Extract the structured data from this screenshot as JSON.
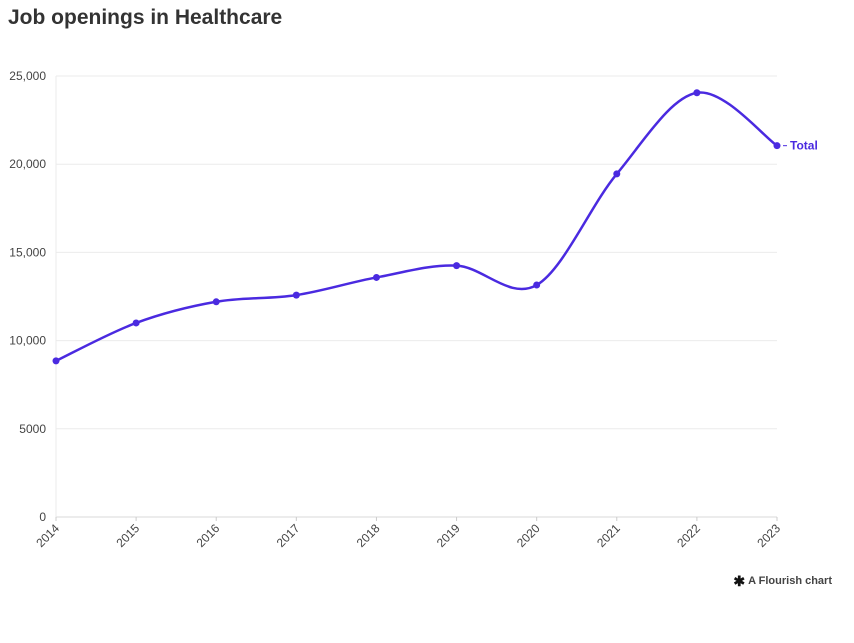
{
  "chart_data": {
    "type": "line",
    "title": "Job openings in Healthcare",
    "x": [
      "2014",
      "2015",
      "2016",
      "2017",
      "2018",
      "2019",
      "2020",
      "2021",
      "2022",
      "2023"
    ],
    "series": [
      {
        "name": "Total",
        "values": [
          8850,
          11000,
          12200,
          12580,
          13580,
          14250,
          13150,
          19450,
          24050,
          21050
        ],
        "color": "#4a2ae0"
      }
    ],
    "ylim": [
      0,
      25000
    ],
    "yticks": [
      0,
      5000,
      10000,
      15000,
      20000,
      25000
    ],
    "ytick_labels": [
      "0",
      "5000",
      "10,000",
      "15,000",
      "20,000",
      "25,000"
    ],
    "xlabel": "",
    "ylabel": "",
    "grid": true,
    "legend": "inline-right"
  },
  "credit": {
    "text": "A Flourish chart",
    "icon": "flourish-asterisk-icon"
  }
}
